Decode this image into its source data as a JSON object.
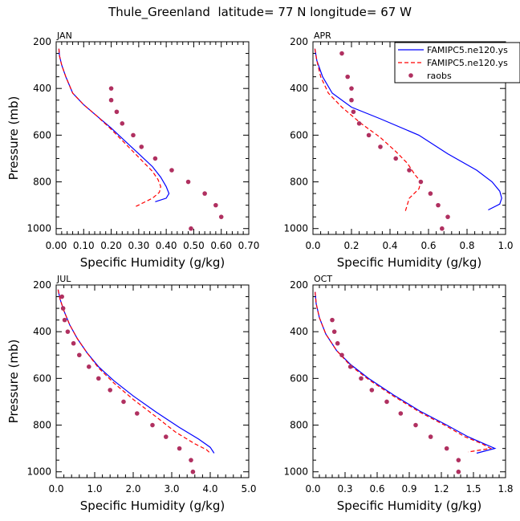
{
  "title": "Thule_Greenland  latitude= 77 N longitude= 67 W",
  "legend": {
    "position": "top-right of APR panel",
    "entries": [
      {
        "label": "FAMIPC5.ne120.ys",
        "style": "solid",
        "color": "#0000ff"
      },
      {
        "label": "FAMIPC5.ne120.ys",
        "style": "dashed",
        "color": "#ff0000"
      },
      {
        "label": "raobs",
        "style": "dot",
        "color": "#b03060"
      }
    ]
  },
  "chart_data": [
    {
      "type": "line",
      "panel": "JAN",
      "xlabel": "Specific Humidity (g/kg)",
      "ylabel": "Pressure (mb)",
      "xlim": [
        0,
        0.7
      ],
      "ylim": [
        200,
        1025
      ],
      "y_reversed": true,
      "xticks": [
        "0.00",
        "0.10",
        "0.20",
        "0.30",
        "0.40",
        "0.50",
        "0.60",
        "0.70"
      ],
      "yticks": [
        "200",
        "400",
        "600",
        "800",
        "1000"
      ],
      "series": [
        {
          "label": "FAMIPC5.ne120.ys",
          "style": "solid",
          "color": "#0000ff",
          "points": [
            [
              0.01,
              230
            ],
            [
              0.012,
              260
            ],
            [
              0.02,
              300
            ],
            [
              0.035,
              350
            ],
            [
              0.06,
              420
            ],
            [
              0.1,
              470
            ],
            [
              0.15,
              520
            ],
            [
              0.2,
              570
            ],
            [
              0.25,
              625
            ],
            [
              0.3,
              680
            ],
            [
              0.35,
              735
            ],
            [
              0.38,
              780
            ],
            [
              0.4,
              820
            ],
            [
              0.41,
              850
            ],
            [
              0.4,
              870
            ],
            [
              0.36,
              885
            ]
          ]
        },
        {
          "label": "FAMIPC5.ne120.ys",
          "style": "dashed",
          "color": "#ff0000",
          "points": [
            [
              0.01,
              230
            ],
            [
              0.012,
              260
            ],
            [
              0.02,
              300
            ],
            [
              0.035,
              350
            ],
            [
              0.06,
              420
            ],
            [
              0.1,
              470
            ],
            [
              0.15,
              520
            ],
            [
              0.2,
              575
            ],
            [
              0.25,
              635
            ],
            [
              0.3,
              695
            ],
            [
              0.35,
              755
            ],
            [
              0.37,
              790
            ],
            [
              0.38,
              820
            ],
            [
              0.375,
              845
            ],
            [
              0.35,
              870
            ],
            [
              0.29,
              905
            ]
          ]
        },
        {
          "label": "raobs",
          "style": "dot",
          "color": "#b03060",
          "points": [
            [
              0.2,
              400
            ],
            [
              0.2,
              450
            ],
            [
              0.22,
              500
            ],
            [
              0.24,
              550
            ],
            [
              0.28,
              600
            ],
            [
              0.31,
              650
            ],
            [
              0.36,
              700
            ],
            [
              0.42,
              750
            ],
            [
              0.48,
              800
            ],
            [
              0.54,
              850
            ],
            [
              0.58,
              900
            ],
            [
              0.6,
              950
            ],
            [
              0.49,
              1000
            ]
          ]
        }
      ]
    },
    {
      "type": "line",
      "panel": "APR",
      "xlabel": "Specific Humidity (g/kg)",
      "ylabel": "",
      "xlim": [
        0,
        1.0
      ],
      "ylim": [
        200,
        1025
      ],
      "y_reversed": true,
      "xticks": [
        "0.0",
        "0.2",
        "0.4",
        "0.6",
        "0.8",
        "1.0"
      ],
      "yticks": [
        "200",
        "400",
        "600",
        "800",
        "1000"
      ],
      "series": [
        {
          "label": "FAMIPC5.ne120.ys",
          "style": "solid",
          "color": "#0000ff",
          "points": [
            [
              0.01,
              230
            ],
            [
              0.02,
              280
            ],
            [
              0.05,
              350
            ],
            [
              0.1,
              420
            ],
            [
              0.2,
              480
            ],
            [
              0.35,
              530
            ],
            [
              0.55,
              600
            ],
            [
              0.7,
              680
            ],
            [
              0.85,
              750
            ],
            [
              0.93,
              800
            ],
            [
              0.97,
              840
            ],
            [
              0.98,
              870
            ],
            [
              0.97,
              895
            ],
            [
              0.91,
              920
            ]
          ]
        },
        {
          "label": "FAMIPC5.ne120.ys",
          "style": "dashed",
          "color": "#ff0000",
          "points": [
            [
              0.01,
              230
            ],
            [
              0.02,
              280
            ],
            [
              0.04,
              350
            ],
            [
              0.08,
              420
            ],
            [
              0.15,
              480
            ],
            [
              0.25,
              550
            ],
            [
              0.35,
              610
            ],
            [
              0.43,
              670
            ],
            [
              0.49,
              720
            ],
            [
              0.53,
              770
            ],
            [
              0.56,
              800
            ],
            [
              0.55,
              830
            ],
            [
              0.5,
              870
            ],
            [
              0.48,
              925
            ]
          ]
        },
        {
          "label": "raobs",
          "style": "dot",
          "color": "#b03060",
          "points": [
            [
              0.15,
              250
            ],
            [
              0.18,
              350
            ],
            [
              0.2,
              400
            ],
            [
              0.2,
              450
            ],
            [
              0.21,
              500
            ],
            [
              0.24,
              550
            ],
            [
              0.29,
              600
            ],
            [
              0.35,
              650
            ],
            [
              0.43,
              700
            ],
            [
              0.5,
              750
            ],
            [
              0.56,
              800
            ],
            [
              0.61,
              850
            ],
            [
              0.65,
              900
            ],
            [
              0.7,
              950
            ],
            [
              0.67,
              1000
            ]
          ]
        }
      ]
    },
    {
      "type": "line",
      "panel": "JUL",
      "xlabel": "Specific Humidity (g/kg)",
      "ylabel": "Pressure (mb)",
      "xlim": [
        0,
        5.0
      ],
      "ylim": [
        200,
        1025
      ],
      "y_reversed": true,
      "xticks": [
        "0.0",
        "1.0",
        "2.0",
        "3.0",
        "4.0",
        "5.0"
      ],
      "yticks": [
        "200",
        "400",
        "600",
        "800",
        "1000"
      ],
      "series": [
        {
          "label": "FAMIPC5.ne120.ys",
          "style": "solid",
          "color": "#0000ff",
          "points": [
            [
              0.05,
              220
            ],
            [
              0.1,
              260
            ],
            [
              0.2,
              310
            ],
            [
              0.35,
              370
            ],
            [
              0.55,
              430
            ],
            [
              0.8,
              490
            ],
            [
              1.1,
              550
            ],
            [
              1.5,
              610
            ],
            [
              2.0,
              675
            ],
            [
              2.6,
              745
            ],
            [
              3.2,
              810
            ],
            [
              3.7,
              860
            ],
            [
              4.0,
              895
            ],
            [
              4.1,
              920
            ]
          ]
        },
        {
          "label": "FAMIPC5.ne120.ys",
          "style": "dashed",
          "color": "#ff0000",
          "points": [
            [
              0.05,
              220
            ],
            [
              0.1,
              260
            ],
            [
              0.2,
              310
            ],
            [
              0.35,
              370
            ],
            [
              0.55,
              430
            ],
            [
              0.8,
              490
            ],
            [
              1.1,
              555
            ],
            [
              1.5,
              620
            ],
            [
              2.0,
              690
            ],
            [
              2.6,
              765
            ],
            [
              3.1,
              830
            ],
            [
              3.6,
              880
            ],
            [
              3.9,
              905
            ],
            [
              4.0,
              920
            ]
          ]
        },
        {
          "label": "raobs",
          "style": "dot",
          "color": "#b03060",
          "points": [
            [
              0.15,
              250
            ],
            [
              0.18,
              300
            ],
            [
              0.22,
              350
            ],
            [
              0.3,
              400
            ],
            [
              0.45,
              450
            ],
            [
              0.6,
              500
            ],
            [
              0.85,
              550
            ],
            [
              1.1,
              600
            ],
            [
              1.4,
              650
            ],
            [
              1.75,
              700
            ],
            [
              2.1,
              750
            ],
            [
              2.5,
              800
            ],
            [
              2.85,
              850
            ],
            [
              3.2,
              900
            ],
            [
              3.5,
              950
            ],
            [
              3.55,
              1000
            ]
          ]
        }
      ]
    },
    {
      "type": "line",
      "panel": "OCT",
      "xlabel": "Specific Humidity (g/kg)",
      "ylabel": "",
      "xlim": [
        0,
        1.8
      ],
      "ylim": [
        200,
        1025
      ],
      "y_reversed": true,
      "xticks": [
        "0.0",
        "0.3",
        "0.6",
        "0.9",
        "1.2",
        "1.5",
        "1.8"
      ],
      "yticks": [
        "200",
        "400",
        "600",
        "800",
        "1000"
      ],
      "series": [
        {
          "label": "FAMIPC5.ne120.ys",
          "style": "solid",
          "color": "#0000ff",
          "points": [
            [
              0.02,
              230
            ],
            [
              0.03,
              280
            ],
            [
              0.06,
              340
            ],
            [
              0.12,
              410
            ],
            [
              0.22,
              480
            ],
            [
              0.35,
              540
            ],
            [
              0.52,
              600
            ],
            [
              0.75,
              670
            ],
            [
              1.0,
              740
            ],
            [
              1.25,
              800
            ],
            [
              1.45,
              850
            ],
            [
              1.6,
              880
            ],
            [
              1.7,
              900
            ],
            [
              1.53,
              920
            ]
          ]
        },
        {
          "label": "FAMIPC5.ne120.ys",
          "style": "dashed",
          "color": "#ff0000",
          "points": [
            [
              0.02,
              230
            ],
            [
              0.03,
              280
            ],
            [
              0.06,
              340
            ],
            [
              0.12,
              410
            ],
            [
              0.22,
              480
            ],
            [
              0.35,
              545
            ],
            [
              0.52,
              605
            ],
            [
              0.75,
              675
            ],
            [
              1.0,
              745
            ],
            [
              1.25,
              805
            ],
            [
              1.42,
              850
            ],
            [
              1.58,
              880
            ],
            [
              1.66,
              900
            ],
            [
              1.45,
              915
            ]
          ]
        },
        {
          "label": "raobs",
          "style": "dot",
          "color": "#b03060",
          "points": [
            [
              0.18,
              350
            ],
            [
              0.2,
              400
            ],
            [
              0.23,
              450
            ],
            [
              0.27,
              500
            ],
            [
              0.35,
              550
            ],
            [
              0.45,
              600
            ],
            [
              0.55,
              650
            ],
            [
              0.69,
              700
            ],
            [
              0.82,
              750
            ],
            [
              0.96,
              800
            ],
            [
              1.1,
              850
            ],
            [
              1.25,
              900
            ],
            [
              1.36,
              950
            ],
            [
              1.36,
              1000
            ]
          ]
        }
      ]
    }
  ]
}
